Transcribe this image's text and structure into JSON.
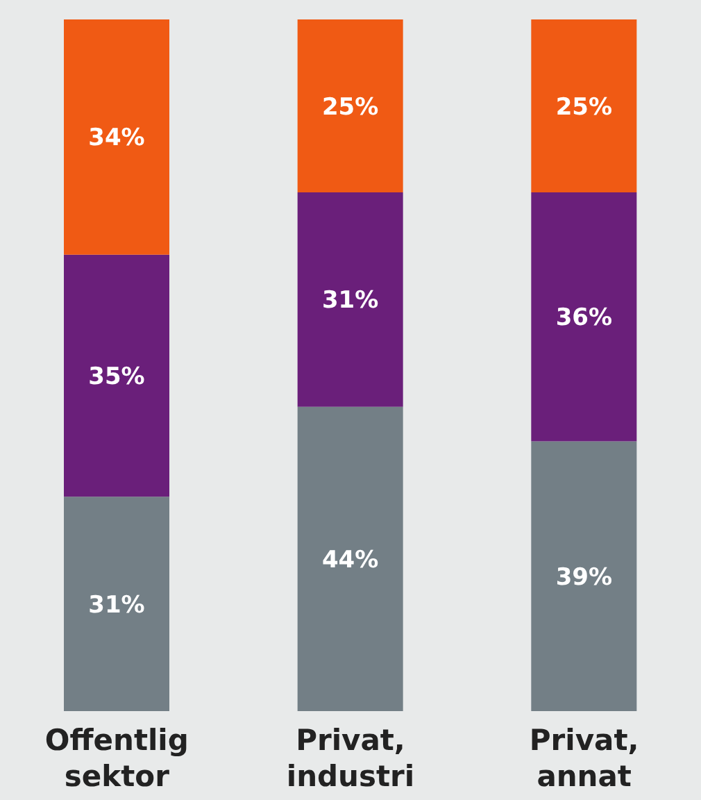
{
  "chart_data": {
    "type": "bar",
    "stacked": true,
    "categories": [
      "Offentlig sektor",
      "Privat, industri",
      "Privat, annat"
    ],
    "series": [
      {
        "color": "#737f86",
        "values": [
          31,
          44,
          39
        ],
        "value_labels": [
          "31%",
          "44%",
          "39%"
        ]
      },
      {
        "color": "#6a1f7a",
        "values": [
          35,
          31,
          36
        ],
        "value_labels": [
          "35%",
          "31%",
          "36%"
        ]
      },
      {
        "color": "#f05a14",
        "values": [
          34,
          25,
          25
        ],
        "value_labels": [
          "34%",
          "25%",
          "25%"
        ]
      }
    ],
    "tick_labels": "x",
    "grid": false,
    "legend": false
  }
}
